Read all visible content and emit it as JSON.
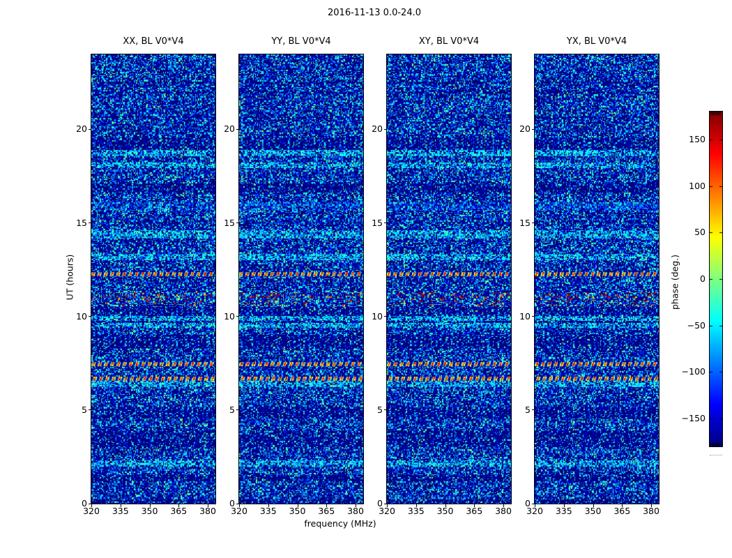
{
  "title": "2016-11-13 0.0-24.0",
  "xlabel": "frequency (MHz)",
  "ylabel": "UT (hours)",
  "panels": [
    {
      "pol": "XX",
      "title": "XX, BL V0*V4"
    },
    {
      "pol": "YY",
      "title": "YY, BL V0*V4"
    },
    {
      "pol": "XY",
      "title": "XY, BL V0*V4"
    },
    {
      "pol": "YX",
      "title": "YX, BL V0*V4"
    }
  ],
  "x_tick_labels": [
    "320",
    "335",
    "350",
    "365",
    "380"
  ],
  "y_tick_labels": [
    "0",
    "5",
    "10",
    "15",
    "20"
  ],
  "colorbar": {
    "label": "phase (deg.)",
    "tick_labels": [
      "150",
      "100",
      "50",
      "0",
      "−50",
      "−100",
      "−150"
    ],
    "tick_values": [
      150,
      100,
      50,
      0,
      -50,
      -100,
      -150
    ],
    "vmin": -180,
    "vmax": 180,
    "colormap": "jet"
  },
  "chart_data": {
    "type": "heatmap",
    "title": "2016-11-13 0.0-24.0",
    "subplots": [
      "XX, BL V0*V4",
      "YY, BL V0*V4",
      "XY, BL V0*V4",
      "YX, BL V0*V4"
    ],
    "xlabel": "frequency (MHz)",
    "ylabel": "UT (hours)",
    "value_label": "phase (deg.)",
    "value_range_deg": [
      -180,
      180
    ],
    "x_range_mhz": [
      320,
      384
    ],
    "y_range_hours": [
      0,
      24
    ],
    "x_ticks": [
      320,
      335,
      350,
      365,
      380
    ],
    "y_ticks": [
      0,
      5,
      10,
      15,
      20
    ],
    "colormap": "jet",
    "description": "Four waterfall plots of interferometric visibility phase vs frequency and UT for baseline V0*V4, polarizations XX/YY/XY/YX. Phase is noise-like with horizontal time bands: random-phase intervals, dark bands near -180 deg, smooth green bands near 0 deg, periodic striped/dashed calibration-like rows and wavy fringe patches. Band structure is shared by all four panels.",
    "band_modes": {
      "n": "random noise, phase uniform in [-180,180]",
      "d": "dark band, phase near -180",
      "g": "smooth band, phase near 0 (pale green)",
      "gs": "smooth with colored speckle",
      "s": "periodic red/blue stripes vs frequency",
      "ds": "dashed: alternating dark and random cells",
      "dd": "dark band interleaved with dashed noise rows",
      "f": "wavy interference fringes"
    },
    "bands": [
      [
        24.0,
        22.55,
        "n"
      ],
      [
        22.55,
        22.45,
        "d"
      ],
      [
        22.45,
        22.05,
        "n"
      ],
      [
        22.05,
        21.95,
        "d"
      ],
      [
        21.95,
        20.7,
        "n"
      ],
      [
        20.7,
        20.6,
        "d"
      ],
      [
        20.6,
        19.6,
        "n"
      ],
      [
        19.6,
        18.9,
        "ds"
      ],
      [
        18.9,
        18.55,
        "g"
      ],
      [
        18.55,
        18.25,
        "n"
      ],
      [
        18.25,
        17.95,
        "g"
      ],
      [
        17.95,
        17.15,
        "n"
      ],
      [
        17.15,
        16.6,
        "d"
      ],
      [
        16.6,
        16.1,
        "n"
      ],
      [
        16.1,
        15.65,
        "gs"
      ],
      [
        15.65,
        15.1,
        "n"
      ],
      [
        15.1,
        15.0,
        "d"
      ],
      [
        15.0,
        14.6,
        "n"
      ],
      [
        14.6,
        14.2,
        "g"
      ],
      [
        14.2,
        13.35,
        "n"
      ],
      [
        13.35,
        13.0,
        "g"
      ],
      [
        13.0,
        12.4,
        "n"
      ],
      [
        12.4,
        12.2,
        "s"
      ],
      [
        12.2,
        11.3,
        "n"
      ],
      [
        11.3,
        10.5,
        "f"
      ],
      [
        10.5,
        10.05,
        "ds"
      ],
      [
        10.05,
        9.75,
        "g"
      ],
      [
        9.75,
        9.65,
        "d"
      ],
      [
        9.65,
        9.4,
        "g"
      ],
      [
        9.4,
        9.05,
        "n"
      ],
      [
        9.05,
        8.3,
        "ds"
      ],
      [
        8.3,
        7.6,
        "n"
      ],
      [
        7.6,
        7.4,
        "s"
      ],
      [
        7.4,
        6.8,
        "n"
      ],
      [
        6.8,
        6.55,
        "s"
      ],
      [
        6.55,
        6.25,
        "g"
      ],
      [
        6.25,
        5.15,
        "n"
      ],
      [
        5.15,
        4.55,
        "ds"
      ],
      [
        4.55,
        3.95,
        "n"
      ],
      [
        3.95,
        3.05,
        "dd"
      ],
      [
        3.05,
        2.35,
        "n"
      ],
      [
        2.35,
        2.0,
        "g"
      ],
      [
        2.0,
        1.55,
        "n"
      ],
      [
        1.55,
        1.2,
        "d"
      ],
      [
        1.2,
        0.25,
        "n"
      ],
      [
        0.25,
        0.0,
        "dd"
      ]
    ]
  },
  "colors": {
    "background": "#ffffff",
    "frame": "#000000",
    "text": "#000000"
  }
}
